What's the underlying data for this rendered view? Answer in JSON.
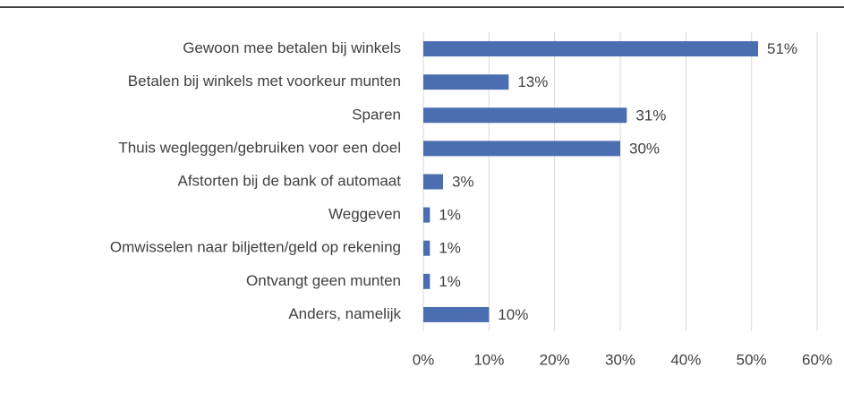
{
  "chart_data": {
    "type": "bar",
    "orientation": "horizontal",
    "categories": [
      "Gewoon mee betalen bij winkels",
      "Betalen bij winkels met voorkeur munten",
      "Sparen",
      "Thuis wegleggen/gebruiken voor een doel",
      "Afstorten bij de bank of automaat",
      "Weggeven",
      "Omwisselen naar biljetten/geld op rekening",
      "Ontvangt geen munten",
      "Anders, namelijk"
    ],
    "values": [
      51,
      13,
      31,
      30,
      3,
      1,
      1,
      1,
      10
    ],
    "value_labels": [
      "51%",
      "13%",
      "31%",
      "30%",
      "3%",
      "1%",
      "1%",
      "1%",
      "10%"
    ],
    "color": "#4a6eb0",
    "xlim": [
      0,
      60
    ],
    "xticks": [
      {
        "value": 0,
        "label": "0%"
      },
      {
        "value": 10,
        "label": "10%"
      },
      {
        "value": 20,
        "label": "20%"
      },
      {
        "value": 30,
        "label": "30%"
      },
      {
        "value": 40,
        "label": "40%"
      },
      {
        "value": 50,
        "label": "50%"
      },
      {
        "value": 60,
        "label": "60%"
      }
    ],
    "grid": true
  }
}
